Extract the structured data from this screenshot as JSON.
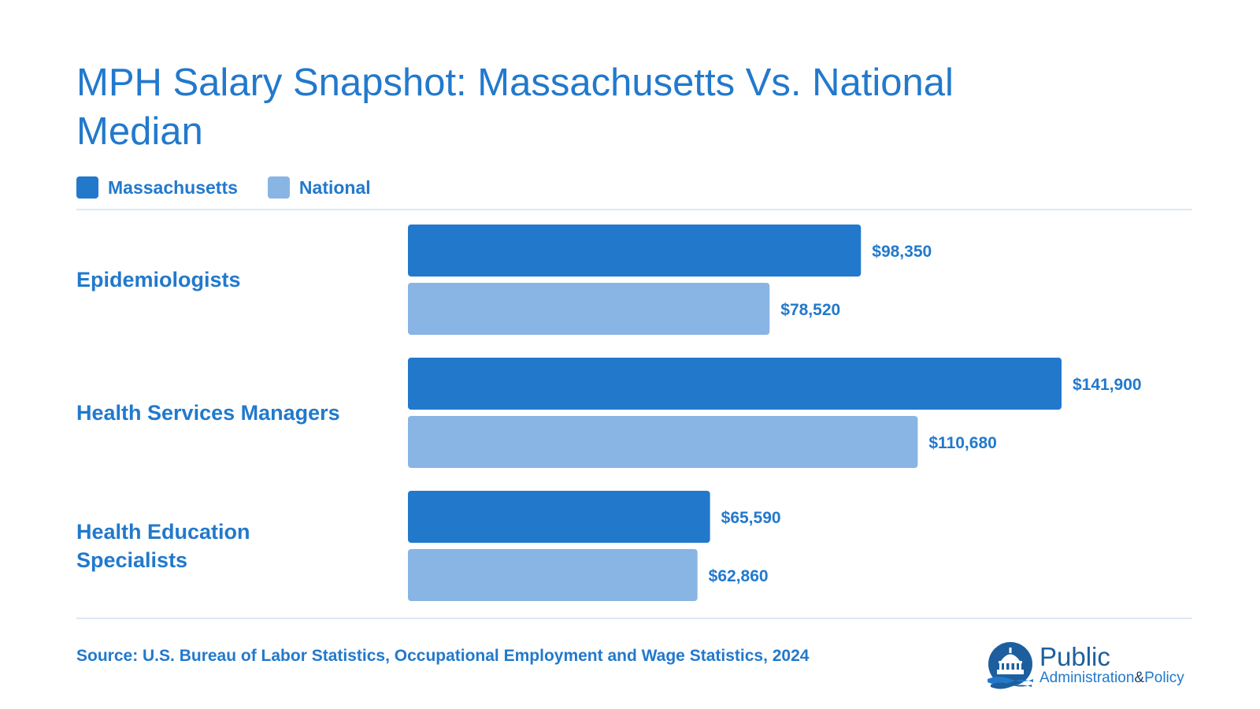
{
  "title": "MPH Salary Snapshot: Massachusetts Vs. National Median",
  "colors": {
    "accent": "#2279cc",
    "massachusetts": "#2279cc",
    "national": "#88b5e4",
    "rule": "#dde8f3"
  },
  "legend": [
    {
      "label": "Massachusetts",
      "color": "#2279cc"
    },
    {
      "label": "National",
      "color": "#88b5e4"
    }
  ],
  "chart_data": {
    "type": "bar",
    "orientation": "horizontal",
    "title": "MPH Salary Snapshot: Massachusetts Vs. National Median",
    "categories": [
      "Epidemiologists",
      "Health Services Managers",
      "Health Education Specialists"
    ],
    "series": [
      {
        "name": "Massachusetts",
        "values": [
          98350,
          141900,
          65590
        ],
        "labels": [
          "$98,350",
          "$141,900",
          "$65,590"
        ]
      },
      {
        "name": "National",
        "values": [
          78520,
          110680,
          62860
        ],
        "labels": [
          "$78,520",
          "$110,680",
          "$62,860"
        ]
      }
    ],
    "grid": false,
    "legend_position": "top-left"
  },
  "source": "Source: U.S. Bureau of Labor Statistics, Occupational Employment and Wage Statistics, 2024",
  "logo": {
    "word1": "Public",
    "word2": "Administration",
    "amp": "&",
    "word3": "Policy",
    "icon": "capitol-dome-icon"
  }
}
